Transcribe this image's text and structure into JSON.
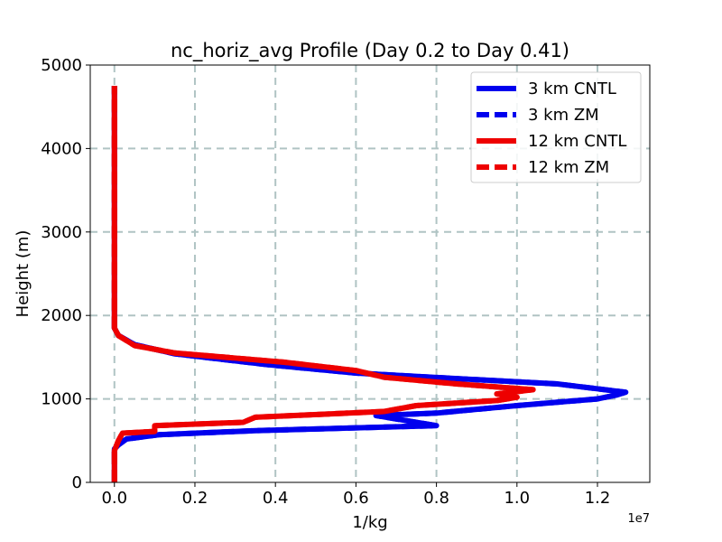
{
  "chart_data": {
    "type": "line",
    "title": "nc_horiz_avg Profile (Day 0.2 to Day 0.41)",
    "xlabel": "1/kg",
    "ylabel": "Height (m)",
    "x_offset_label": "1e7",
    "xlim": [
      -0.06,
      1.33
    ],
    "ylim": [
      0,
      5000
    ],
    "x_ticks": [
      0.0,
      0.2,
      0.4,
      0.6,
      0.8,
      1.0,
      1.2
    ],
    "x_tick_labels": [
      "0.0",
      "0.2",
      "0.4",
      "0.6",
      "0.8",
      "1.0",
      "1.2"
    ],
    "y_ticks": [
      0,
      1000,
      2000,
      3000,
      4000,
      5000
    ],
    "y_tick_labels": [
      "0",
      "1000",
      "2000",
      "3000",
      "4000",
      "5000"
    ],
    "grid": true,
    "legend_position": "top-right",
    "series": [
      {
        "name": "3 km CNTL",
        "color": "#0000ee",
        "dash": "solid",
        "x": [
          0,
          0,
          0,
          0,
          0.01,
          0.03,
          0.11,
          0.35,
          0.8,
          0.65,
          0.8,
          1.0,
          1.2,
          1.25,
          1.27,
          1.1,
          0.9,
          0.6,
          0.38,
          0.15,
          0.05,
          0.01,
          0,
          0,
          0
        ],
        "y": [
          0,
          200,
          350,
          400,
          450,
          520,
          570,
          620,
          680,
          800,
          830,
          920,
          1000,
          1050,
          1080,
          1180,
          1230,
          1310,
          1410,
          1540,
          1650,
          1760,
          1850,
          2000,
          4750
        ]
      },
      {
        "name": "3 km ZM",
        "color": "#0000ee",
        "dash": "dashed",
        "x": [
          0,
          0,
          0,
          0,
          0.01,
          0.03,
          0.11,
          0.35,
          0.8,
          0.65,
          0.8,
          1.0,
          1.2,
          1.25,
          1.27,
          1.1,
          0.9,
          0.6,
          0.38,
          0.15,
          0.05,
          0.01,
          0,
          0,
          0
        ],
        "y": [
          0,
          200,
          350,
          400,
          450,
          520,
          570,
          620,
          680,
          800,
          830,
          920,
          1000,
          1050,
          1080,
          1180,
          1230,
          1310,
          1410,
          1540,
          1650,
          1760,
          1850,
          2000,
          4750
        ]
      },
      {
        "name": "12 km CNTL",
        "color": "#ee0000",
        "dash": "solid",
        "x": [
          0,
          0,
          0,
          0.01,
          0.02,
          0.1,
          0.1,
          0.32,
          0.35,
          0.67,
          0.75,
          0.95,
          1.0,
          0.95,
          1.04,
          0.85,
          0.67,
          0.6,
          0.42,
          0.15,
          0.05,
          0.01,
          0,
          0,
          0
        ],
        "y": [
          0,
          200,
          380,
          500,
          590,
          610,
          680,
          720,
          780,
          850,
          920,
          980,
          1020,
          1060,
          1110,
          1180,
          1260,
          1340,
          1440,
          1550,
          1640,
          1760,
          1850,
          2000,
          4750
        ]
      },
      {
        "name": "12 km ZM",
        "color": "#ee0000",
        "dash": "dashed",
        "x": [
          0,
          0,
          0,
          0.01,
          0.02,
          0.1,
          0.1,
          0.32,
          0.35,
          0.67,
          0.75,
          0.95,
          1.0,
          0.95,
          1.04,
          0.85,
          0.67,
          0.6,
          0.42,
          0.15,
          0.05,
          0.01,
          0,
          0,
          0
        ],
        "y": [
          0,
          200,
          380,
          500,
          590,
          610,
          680,
          720,
          780,
          850,
          920,
          980,
          1020,
          1060,
          1110,
          1180,
          1260,
          1340,
          1440,
          1550,
          1640,
          1760,
          1850,
          2000,
          4750
        ]
      }
    ]
  }
}
